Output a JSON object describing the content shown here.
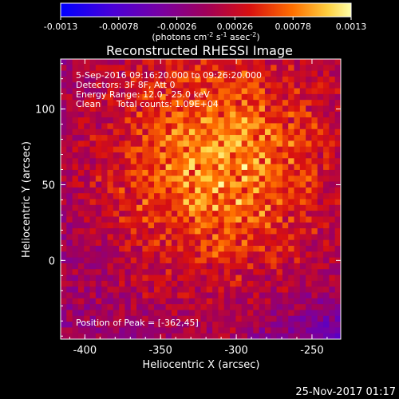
{
  "chart_data": {
    "type": "heatmap",
    "title": "Reconstructed RHESSI Image",
    "colorbar": {
      "ticks": [
        "-0.0013",
        "-0.00078",
        "-0.00026",
        "0.00026",
        "0.00078",
        "0.0013"
      ],
      "range": [
        -0.0013,
        0.0013
      ],
      "units": "(photons cm<sup>-2</sup> s<sup>-1</sup> asec<sup>-2</sup>)",
      "units_main": "(photons cm",
      "units_sup1": "-2",
      "units_mid1": " s",
      "units_sup2": "-1",
      "units_mid2": " asec",
      "units_sup3": "-2",
      "units_end": ")"
    },
    "annotations": {
      "line1": "5-Sep-2016 09:16:20.000 to 09:26:20.000",
      "line2": "Detectors: 3F 8F, Att 0",
      "line3": "Energy Range: 12.0 - 25.0 keV",
      "line4_a": "Clean",
      "line4_b": "Total counts: 1.09E+04",
      "peak": "Position of Peak = [-362,45]"
    },
    "xlabel": "Heliocentric X (arcsec)",
    "ylabel": "Heliocentric Y (arcsec)",
    "xlim": [
      -416,
      -231
    ],
    "ylim": [
      -52,
      133
    ],
    "xticks": [
      -400,
      -350,
      -300,
      -250
    ],
    "xtick_labels": [
      "-400",
      "-350",
      "-300",
      "-250"
    ],
    "yticks": [
      0,
      50,
      100
    ],
    "ytick_labels": [
      "0",
      "50",
      "100"
    ],
    "peak_position": [
      -362,
      45
    ],
    "grid": false
  },
  "footer": {
    "timestamp": "25-Nov-2017 01:17"
  }
}
